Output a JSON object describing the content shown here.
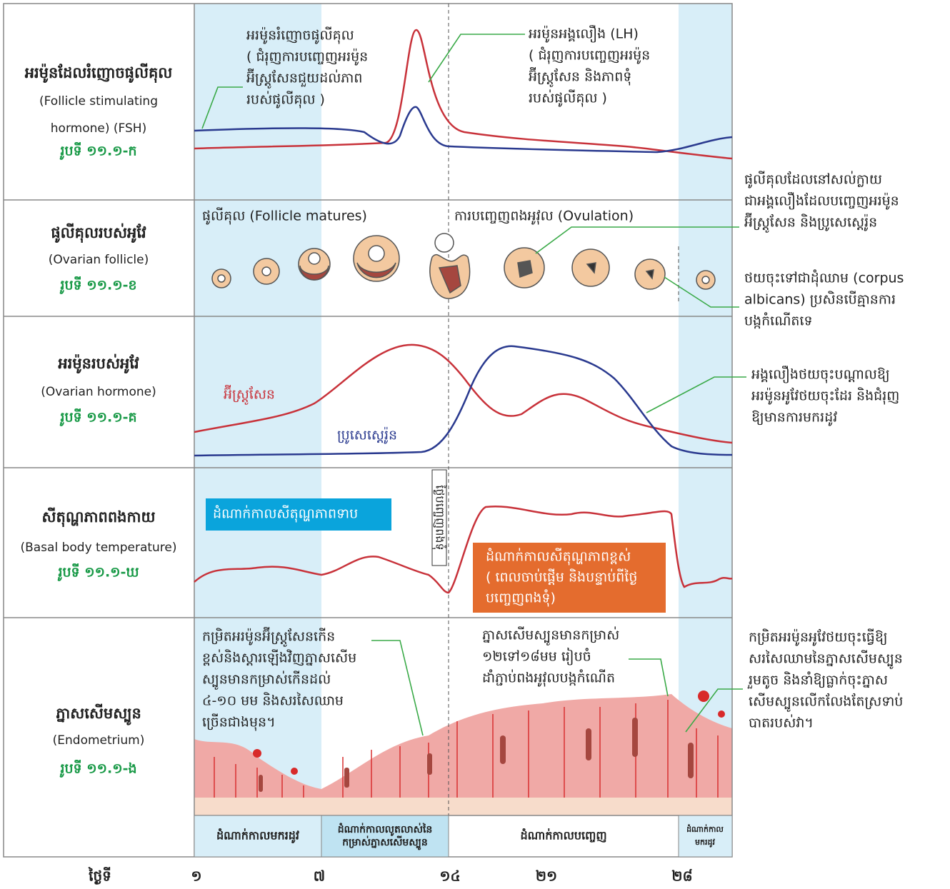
{
  "rows": [
    {
      "title": "អរម៉ូនដែលរំញោចផូលីគុល",
      "subtitle": [
        "(Follicle stimulating",
        "hormone) (FSH)"
      ],
      "figure": "រូបទី ១១.១-ក"
    },
    {
      "title": "ផូលីគុលរបស់អូវែ",
      "subtitle": [
        "(Ovarian follicle)"
      ],
      "figure": "រូបទី ១១.១-ខ"
    },
    {
      "title": "អរម៉ូនរបស់អូវែ",
      "subtitle": [
        "(Ovarian hormone)"
      ],
      "figure": "រូបទី ១១.១-គ"
    },
    {
      "title": "សីតុណ្ហភាពពងកាយ",
      "subtitle": [
        "(Basal body temperature)"
      ],
      "figure": "រូបទី ១១.១-ឃ"
    },
    {
      "title": "ភ្នាសសើមស្បូន",
      "subtitle": [
        "(Endometrium)"
      ],
      "figure": "រូបទី ១១.១-ង"
    }
  ],
  "fsh_note": [
    "អរម៉ូនរំញោចផូលីគុល",
    "( ជំរុញការបញ្ចេញអរម៉ូន",
    "អ៊ីស្ត្រូសែនជួយដល់ភាព",
    "របស់ផូលីគុល )"
  ],
  "lh_note": [
    "អរម៉ូនអង្គលឿង (LH)",
    "( ជំរុញការបញ្ចេញអរម៉ូន",
    "អ៊ីស្ត្រូសែន និងភាពទុំ",
    "របស់ផូលីគុល )"
  ],
  "follicle_label": "ផូលីគុល (Follicle matures)",
  "ovulation_label": "ការបញ្ចេញពងអូវុល (Ovulation)",
  "corpus_luteum_note": [
    "ផូលីគុលដែលនៅសល់ក្លាយ",
    "ជាអង្គលឿងដែលបញ្ចេញអរម៉ូន",
    "អ៊ីស្ត្រូសែន និងប្រូសេស្តេរ៉ូន"
  ],
  "corpus_albicans_note": [
    "ថយចុះទៅជាដុំឈាម (corpus",
    "albicans) ប្រសិនបើគ្មានការ",
    "បង្កកំណើតទេ"
  ],
  "estrogen_label": "អ៊ីស្ត្រូសែន",
  "progesterone_label": "ប្រូសេស្តេរ៉ូន",
  "luteum_decline_note": [
    "អង្គលឿងថយចុះបណ្តាលឱ្យ",
    "អរម៉ូនអូវែថយចុះដែរ និងជំរុញ",
    "ឱ្យមានការមករដូវ"
  ],
  "low_temp_phase": "ដំណាក់កាលសីតុណ្ហភាពទាប",
  "ovulation_day": "ថ្ងៃបញ្ចេញពងទុំ",
  "high_temp_phase": [
    "ដំណាក់កាលសីតុណ្ហភាពខ្ពស់",
    "( ពេលចាប់ផ្តើម និងបន្ទាប់ពីថ្ងៃ",
    "បញ្ចេញពងទុំ)"
  ],
  "proliferation_note": [
    "កម្រិតអរម៉ូនអ៊ីស្ត្រូសែនកើន",
    "ខ្ពស់និងស្តារឡើងវិញភ្នាសសើម",
    "ស្បូនមានកម្រាស់កើនដល់",
    "៤-១០ មម និងសរសៃឈាម",
    "ច្រើនជាងមុន។"
  ],
  "secretory_note": [
    "ភ្នាសសើមស្បូនមានកម្រាស់",
    "១២ទៅ១៨មម រៀបចំ",
    "ដាំភ្ជាប់ពងអូវុលបង្កកំណើត"
  ],
  "menstruation_note": [
    "កម្រិតអរម៉ូនអូវែថយចុះធ្វើឱ្យ",
    "សរសៃឈាមនៃភ្នាសសើមស្បូន",
    "រួមតូច និងនាំឱ្យធ្លាក់ចុះភ្នាស",
    "សើមស្បូនលើកលែងតែស្រទាប់",
    "បាតរបស់វា។"
  ],
  "phases": [
    [
      "ដំណាក់កាលមករដូវ"
    ],
    [
      "ដំណាក់កាលលូតលាស់នៃ",
      "កម្រាស់ភ្នាសសើមស្បូន"
    ],
    [
      "ដំណាក់កាលបញ្ចេញ"
    ],
    [
      "ដំណាក់កាល",
      "មករដូវ"
    ]
  ],
  "day_label": "ថ្ងៃទី",
  "days": [
    "១",
    "៧",
    "១៤",
    "២១",
    "២៨"
  ]
}
